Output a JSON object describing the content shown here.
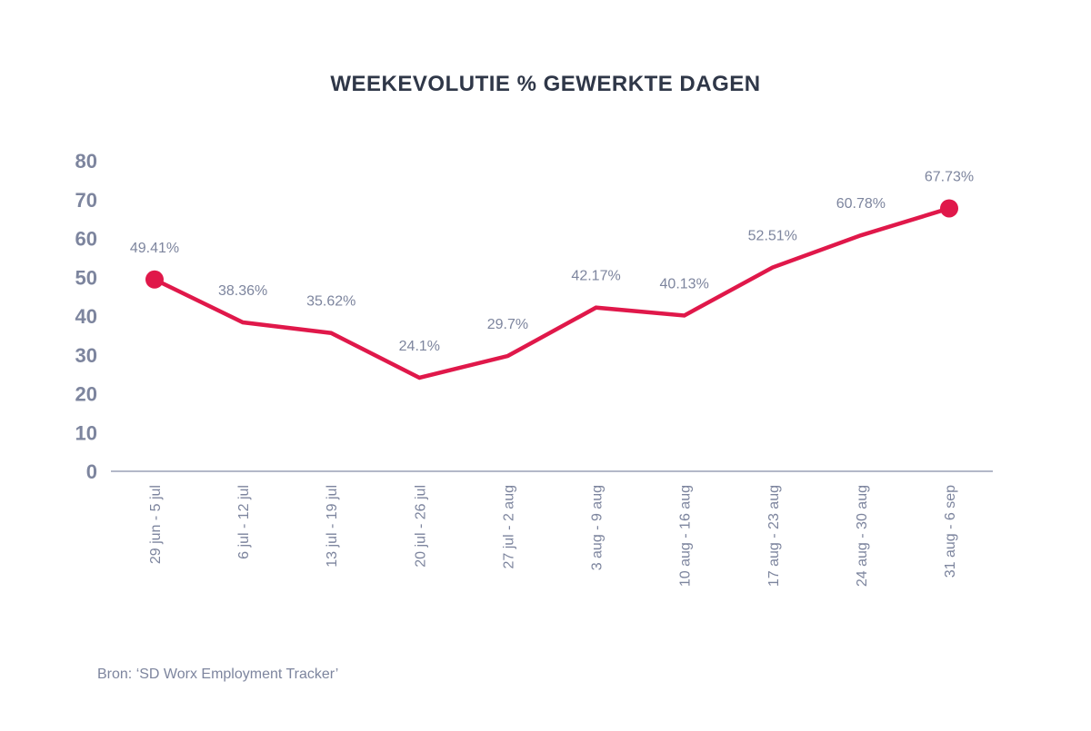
{
  "chart_data": {
    "type": "line",
    "title": "WEEKEVOLUTIE % GEWERKTE DAGEN",
    "xlabel": "",
    "ylabel": "",
    "ylim": [
      0,
      80
    ],
    "yticks": [
      "0",
      "10",
      "20",
      "30",
      "40",
      "50",
      "60",
      "70",
      "80"
    ],
    "grid": false,
    "categories": [
      "29 jun - 5 jul",
      "6 jul - 12 jul",
      "13 jul - 19 jul",
      "20 jul - 26 jul",
      "27 jul - 2 aug",
      "3 aug - 9 aug",
      "10 aug - 16 aug",
      "17 aug - 23 aug",
      "24 aug - 30 aug",
      "31 aug - 6 sep"
    ],
    "values": [
      49.41,
      38.36,
      35.62,
      24.1,
      29.7,
      42.17,
      40.13,
      52.51,
      60.78,
      67.73
    ],
    "data_labels": [
      "49.41%",
      "38.36%",
      "35.62%",
      "24.1%",
      "29.7%",
      "42.17%",
      "40.13%",
      "52.51%",
      "60.78%",
      "67.73%"
    ],
    "line_color": "#e0184a",
    "text_color": "#7d859e",
    "title_color": "#2f3748",
    "source": "Bron: ‘SD Worx Employment Tracker’"
  }
}
